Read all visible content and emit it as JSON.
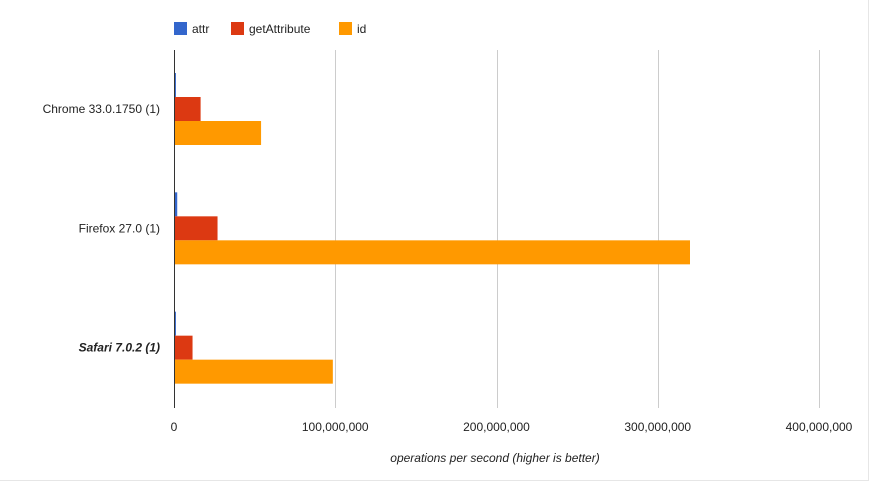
{
  "chart_data": {
    "type": "bar",
    "orientation": "horizontal",
    "categories": [
      "Chrome 33.0.1750 (1)",
      "Firefox 27.0 (1)",
      "Safari 7.0.2 (1)"
    ],
    "highlighted_category": "Safari 7.0.2 (1)",
    "series": [
      {
        "name": "attr",
        "color": "#3366cc",
        "values": [
          1200000,
          2000000,
          1200000
        ]
      },
      {
        "name": "getAttribute",
        "color": "#dc3912",
        "values": [
          16500000,
          27000000,
          11500000
        ]
      },
      {
        "name": "id",
        "color": "#ff9900",
        "values": [
          54000000,
          320000000,
          98500000
        ]
      }
    ],
    "xlim": [
      0,
      400000000
    ],
    "ticks": [
      {
        "value": 0,
        "label": "0"
      },
      {
        "value": 100000000,
        "label": "100,000,000"
      },
      {
        "value": 200000000,
        "label": "200,000,000"
      },
      {
        "value": 300000000,
        "label": "300,000,000"
      },
      {
        "value": 400000000,
        "label": "400,000,000"
      }
    ],
    "xlabel": "operations per second (higher is better)",
    "ylabel": "",
    "title": "",
    "legend_position": "top-left",
    "grid": true
  }
}
